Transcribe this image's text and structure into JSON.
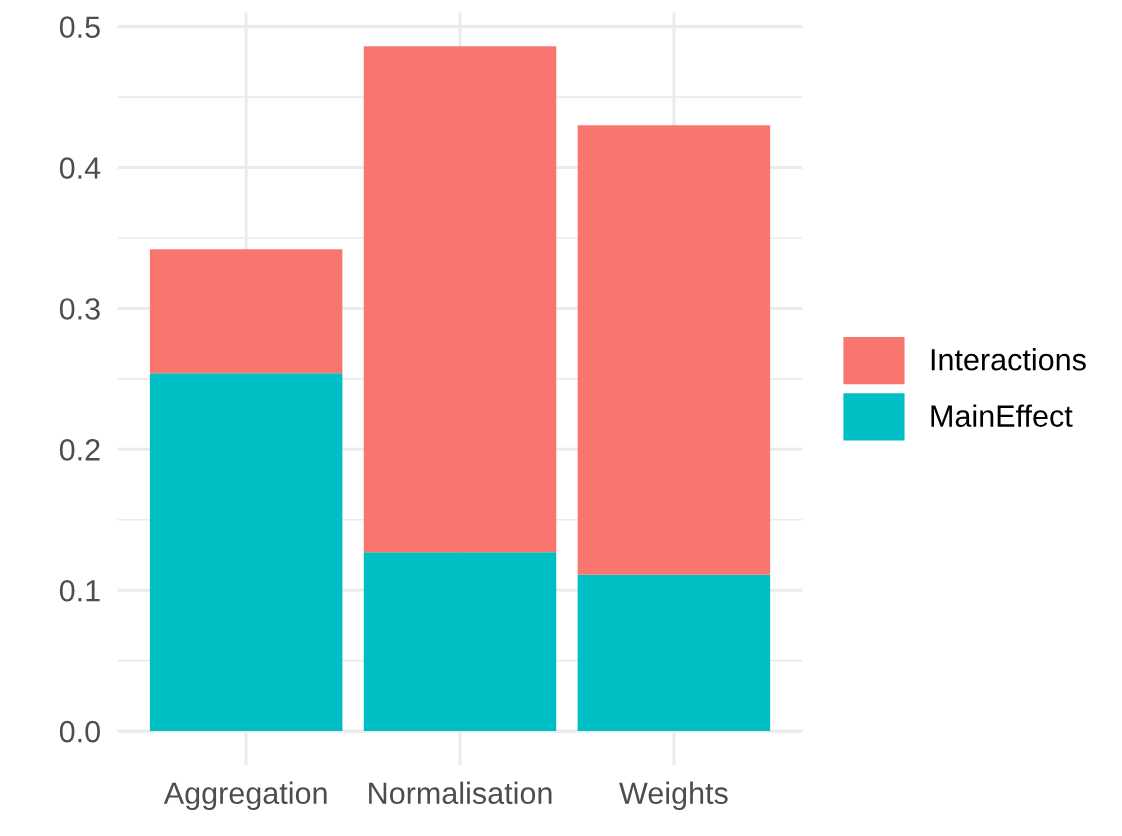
{
  "chart_data": {
    "type": "bar",
    "stacked": true,
    "categories": [
      "Aggregation",
      "Normalisation",
      "Weights"
    ],
    "series": [
      {
        "name": "MainEffect",
        "color": "#00bfc4",
        "values": [
          0.254,
          0.127,
          0.111
        ]
      },
      {
        "name": "Interactions",
        "color": "#f8766d",
        "values": [
          0.088,
          0.359,
          0.319
        ]
      }
    ],
    "ylim": [
      -0.024,
      0.51
    ],
    "yticks": [
      {
        "value": 0,
        "label": "0.0"
      },
      {
        "value": 0.1,
        "label": "0.1"
      },
      {
        "value": 0.2,
        "label": "0.2"
      },
      {
        "value": 0.3,
        "label": "0.3"
      },
      {
        "value": 0.4,
        "label": "0.4"
      },
      {
        "value": 0.5,
        "label": "0.5"
      }
    ],
    "grid": true,
    "legend": "right"
  }
}
